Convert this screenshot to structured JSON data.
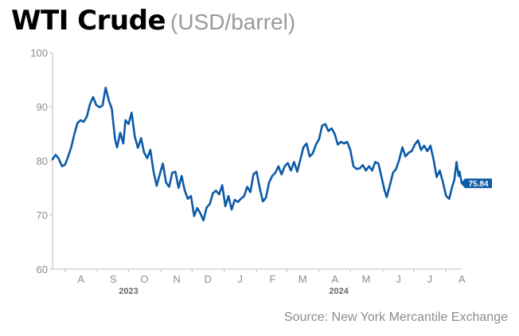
{
  "header": {
    "title": "WTI Crude",
    "subtitle": "(USD/barrel)"
  },
  "source": "Source: New York Mercantile Exchange",
  "colors": {
    "line": "#0b5aa8",
    "grid": "#e3e3e3",
    "axis": "#bdbdbd"
  },
  "chart_data": {
    "type": "line",
    "title": "WTI Crude",
    "subtitle": "(USD/barrel)",
    "xlabel": "",
    "ylabel": "",
    "ylim": [
      60,
      100
    ],
    "yticks": [
      60,
      70,
      80,
      90,
      100
    ],
    "xlim": [
      "2023-07-20",
      "2024-08-16"
    ],
    "month_ticks": [
      {
        "label": "A",
        "date": "2023-08-01"
      },
      {
        "label": "S",
        "date": "2023-09-01"
      },
      {
        "label": "O",
        "date": "2023-10-01"
      },
      {
        "label": "N",
        "date": "2023-11-01"
      },
      {
        "label": "D",
        "date": "2023-12-01"
      },
      {
        "label": "J",
        "date": "2024-01-01"
      },
      {
        "label": "F",
        "date": "2024-02-01"
      },
      {
        "label": "M",
        "date": "2024-03-01"
      },
      {
        "label": "A",
        "date": "2024-04-01"
      },
      {
        "label": "M",
        "date": "2024-05-01"
      },
      {
        "label": "J",
        "date": "2024-06-01"
      },
      {
        "label": "J",
        "date": "2024-07-01"
      },
      {
        "label": "A",
        "date": "2024-08-01"
      }
    ],
    "year_labels": [
      {
        "label": "2023",
        "date": "2023-10-01"
      },
      {
        "label": "2024",
        "date": "2024-04-20"
      }
    ],
    "grid": false,
    "last_value_label": "75.84",
    "series": [
      {
        "points": [
          [
            "2023-07-20",
            80.3
          ],
          [
            "2023-07-23",
            81.1
          ],
          [
            "2023-07-26",
            80.4
          ],
          [
            "2023-07-29",
            79.0
          ],
          [
            "2023-08-01",
            79.3
          ],
          [
            "2023-08-04",
            80.8
          ],
          [
            "2023-08-07",
            82.5
          ],
          [
            "2023-08-10",
            85.0
          ],
          [
            "2023-08-13",
            87.0
          ],
          [
            "2023-08-16",
            87.5
          ],
          [
            "2023-08-19",
            87.2
          ],
          [
            "2023-08-22",
            88.2
          ],
          [
            "2023-08-25",
            90.5
          ],
          [
            "2023-08-28",
            91.8
          ],
          [
            "2023-08-31",
            90.3
          ],
          [
            "2023-09-03",
            89.9
          ],
          [
            "2023-09-06",
            90.2
          ],
          [
            "2023-09-09",
            93.5
          ],
          [
            "2023-09-12",
            91.2
          ],
          [
            "2023-09-15",
            89.6
          ],
          [
            "2023-09-18",
            84.0
          ],
          [
            "2023-09-20",
            82.5
          ],
          [
            "2023-09-23",
            85.2
          ],
          [
            "2023-09-26",
            83.2
          ],
          [
            "2023-09-28",
            87.5
          ],
          [
            "2023-10-01",
            86.8
          ],
          [
            "2023-10-04",
            88.9
          ],
          [
            "2023-10-07",
            84.5
          ],
          [
            "2023-10-10",
            82.4
          ],
          [
            "2023-10-13",
            84.2
          ],
          [
            "2023-10-16",
            81.5
          ],
          [
            "2023-10-19",
            80.5
          ],
          [
            "2023-10-22",
            82.0
          ],
          [
            "2023-10-25",
            78.0
          ],
          [
            "2023-10-28",
            75.4
          ],
          [
            "2023-10-31",
            77.5
          ],
          [
            "2023-11-03",
            79.5
          ],
          [
            "2023-11-06",
            76.0
          ],
          [
            "2023-11-09",
            75.2
          ],
          [
            "2023-11-12",
            77.8
          ],
          [
            "2023-11-15",
            78.0
          ],
          [
            "2023-11-18",
            75.0
          ],
          [
            "2023-11-21",
            77.2
          ],
          [
            "2023-11-24",
            74.5
          ],
          [
            "2023-11-27",
            73.0
          ],
          [
            "2023-11-30",
            73.5
          ],
          [
            "2023-12-03",
            69.8
          ],
          [
            "2023-12-06",
            71.3
          ],
          [
            "2023-12-09",
            70.3
          ],
          [
            "2023-12-12",
            69.0
          ],
          [
            "2023-12-15",
            71.4
          ],
          [
            "2023-12-18",
            72.0
          ],
          [
            "2023-12-21",
            74.0
          ],
          [
            "2023-12-24",
            74.5
          ],
          [
            "2023-12-27",
            73.8
          ],
          [
            "2023-12-30",
            75.5
          ],
          [
            "2024-01-02",
            71.6
          ],
          [
            "2024-01-05",
            73.5
          ],
          [
            "2024-01-08",
            71.0
          ],
          [
            "2024-01-11",
            72.8
          ],
          [
            "2024-01-14",
            72.4
          ],
          [
            "2024-01-17",
            73.0
          ],
          [
            "2024-01-20",
            73.5
          ],
          [
            "2024-01-23",
            75.2
          ],
          [
            "2024-01-26",
            74.2
          ],
          [
            "2024-01-29",
            77.5
          ],
          [
            "2024-02-01",
            78.0
          ],
          [
            "2024-02-04",
            75.0
          ],
          [
            "2024-02-07",
            72.5
          ],
          [
            "2024-02-10",
            73.2
          ],
          [
            "2024-02-13",
            76.0
          ],
          [
            "2024-02-16",
            77.2
          ],
          [
            "2024-02-19",
            77.8
          ],
          [
            "2024-02-22",
            79.0
          ],
          [
            "2024-02-25",
            77.5
          ],
          [
            "2024-02-28",
            79.0
          ],
          [
            "2024-03-02",
            79.6
          ],
          [
            "2024-03-05",
            78.2
          ],
          [
            "2024-03-08",
            79.8
          ],
          [
            "2024-03-11",
            78.0
          ],
          [
            "2024-03-14",
            80.2
          ],
          [
            "2024-03-17",
            82.5
          ],
          [
            "2024-03-20",
            83.2
          ],
          [
            "2024-03-23",
            80.8
          ],
          [
            "2024-03-26",
            81.4
          ],
          [
            "2024-03-29",
            83.0
          ],
          [
            "2024-04-01",
            84.0
          ],
          [
            "2024-04-04",
            86.5
          ],
          [
            "2024-04-07",
            86.8
          ],
          [
            "2024-04-10",
            85.5
          ],
          [
            "2024-04-13",
            86.0
          ],
          [
            "2024-04-16",
            85.0
          ],
          [
            "2024-04-19",
            83.0
          ],
          [
            "2024-04-22",
            83.5
          ],
          [
            "2024-04-25",
            83.2
          ],
          [
            "2024-04-28",
            83.5
          ],
          [
            "2024-05-01",
            82.0
          ],
          [
            "2024-05-04",
            79.0
          ],
          [
            "2024-05-07",
            78.5
          ],
          [
            "2024-05-10",
            78.6
          ],
          [
            "2024-05-13",
            79.2
          ],
          [
            "2024-05-16",
            78.2
          ],
          [
            "2024-05-19",
            79.0
          ],
          [
            "2024-05-22",
            78.2
          ],
          [
            "2024-05-25",
            79.8
          ],
          [
            "2024-05-28",
            79.5
          ],
          [
            "2024-05-31",
            77.0
          ],
          [
            "2024-06-03",
            74.5
          ],
          [
            "2024-06-05",
            73.3
          ],
          [
            "2024-06-08",
            75.5
          ],
          [
            "2024-06-11",
            77.8
          ],
          [
            "2024-06-14",
            78.5
          ],
          [
            "2024-06-17",
            80.2
          ],
          [
            "2024-06-20",
            82.5
          ],
          [
            "2024-06-23",
            80.8
          ],
          [
            "2024-06-26",
            81.5
          ],
          [
            "2024-06-29",
            81.8
          ],
          [
            "2024-07-02",
            83.0
          ],
          [
            "2024-07-05",
            83.8
          ],
          [
            "2024-07-08",
            82.0
          ],
          [
            "2024-07-11",
            82.8
          ],
          [
            "2024-07-14",
            81.8
          ],
          [
            "2024-07-17",
            82.8
          ],
          [
            "2024-07-20",
            80.2
          ],
          [
            "2024-07-23",
            77.0
          ],
          [
            "2024-07-26",
            78.2
          ],
          [
            "2024-07-29",
            76.0
          ],
          [
            "2024-08-01",
            73.5
          ],
          [
            "2024-08-04",
            73.0
          ],
          [
            "2024-08-07",
            75.3
          ],
          [
            "2024-08-09",
            76.5
          ],
          [
            "2024-08-11",
            79.8
          ],
          [
            "2024-08-13",
            77.2
          ],
          [
            "2024-08-14",
            78.0
          ],
          [
            "2024-08-16",
            75.84
          ]
        ]
      }
    ]
  }
}
